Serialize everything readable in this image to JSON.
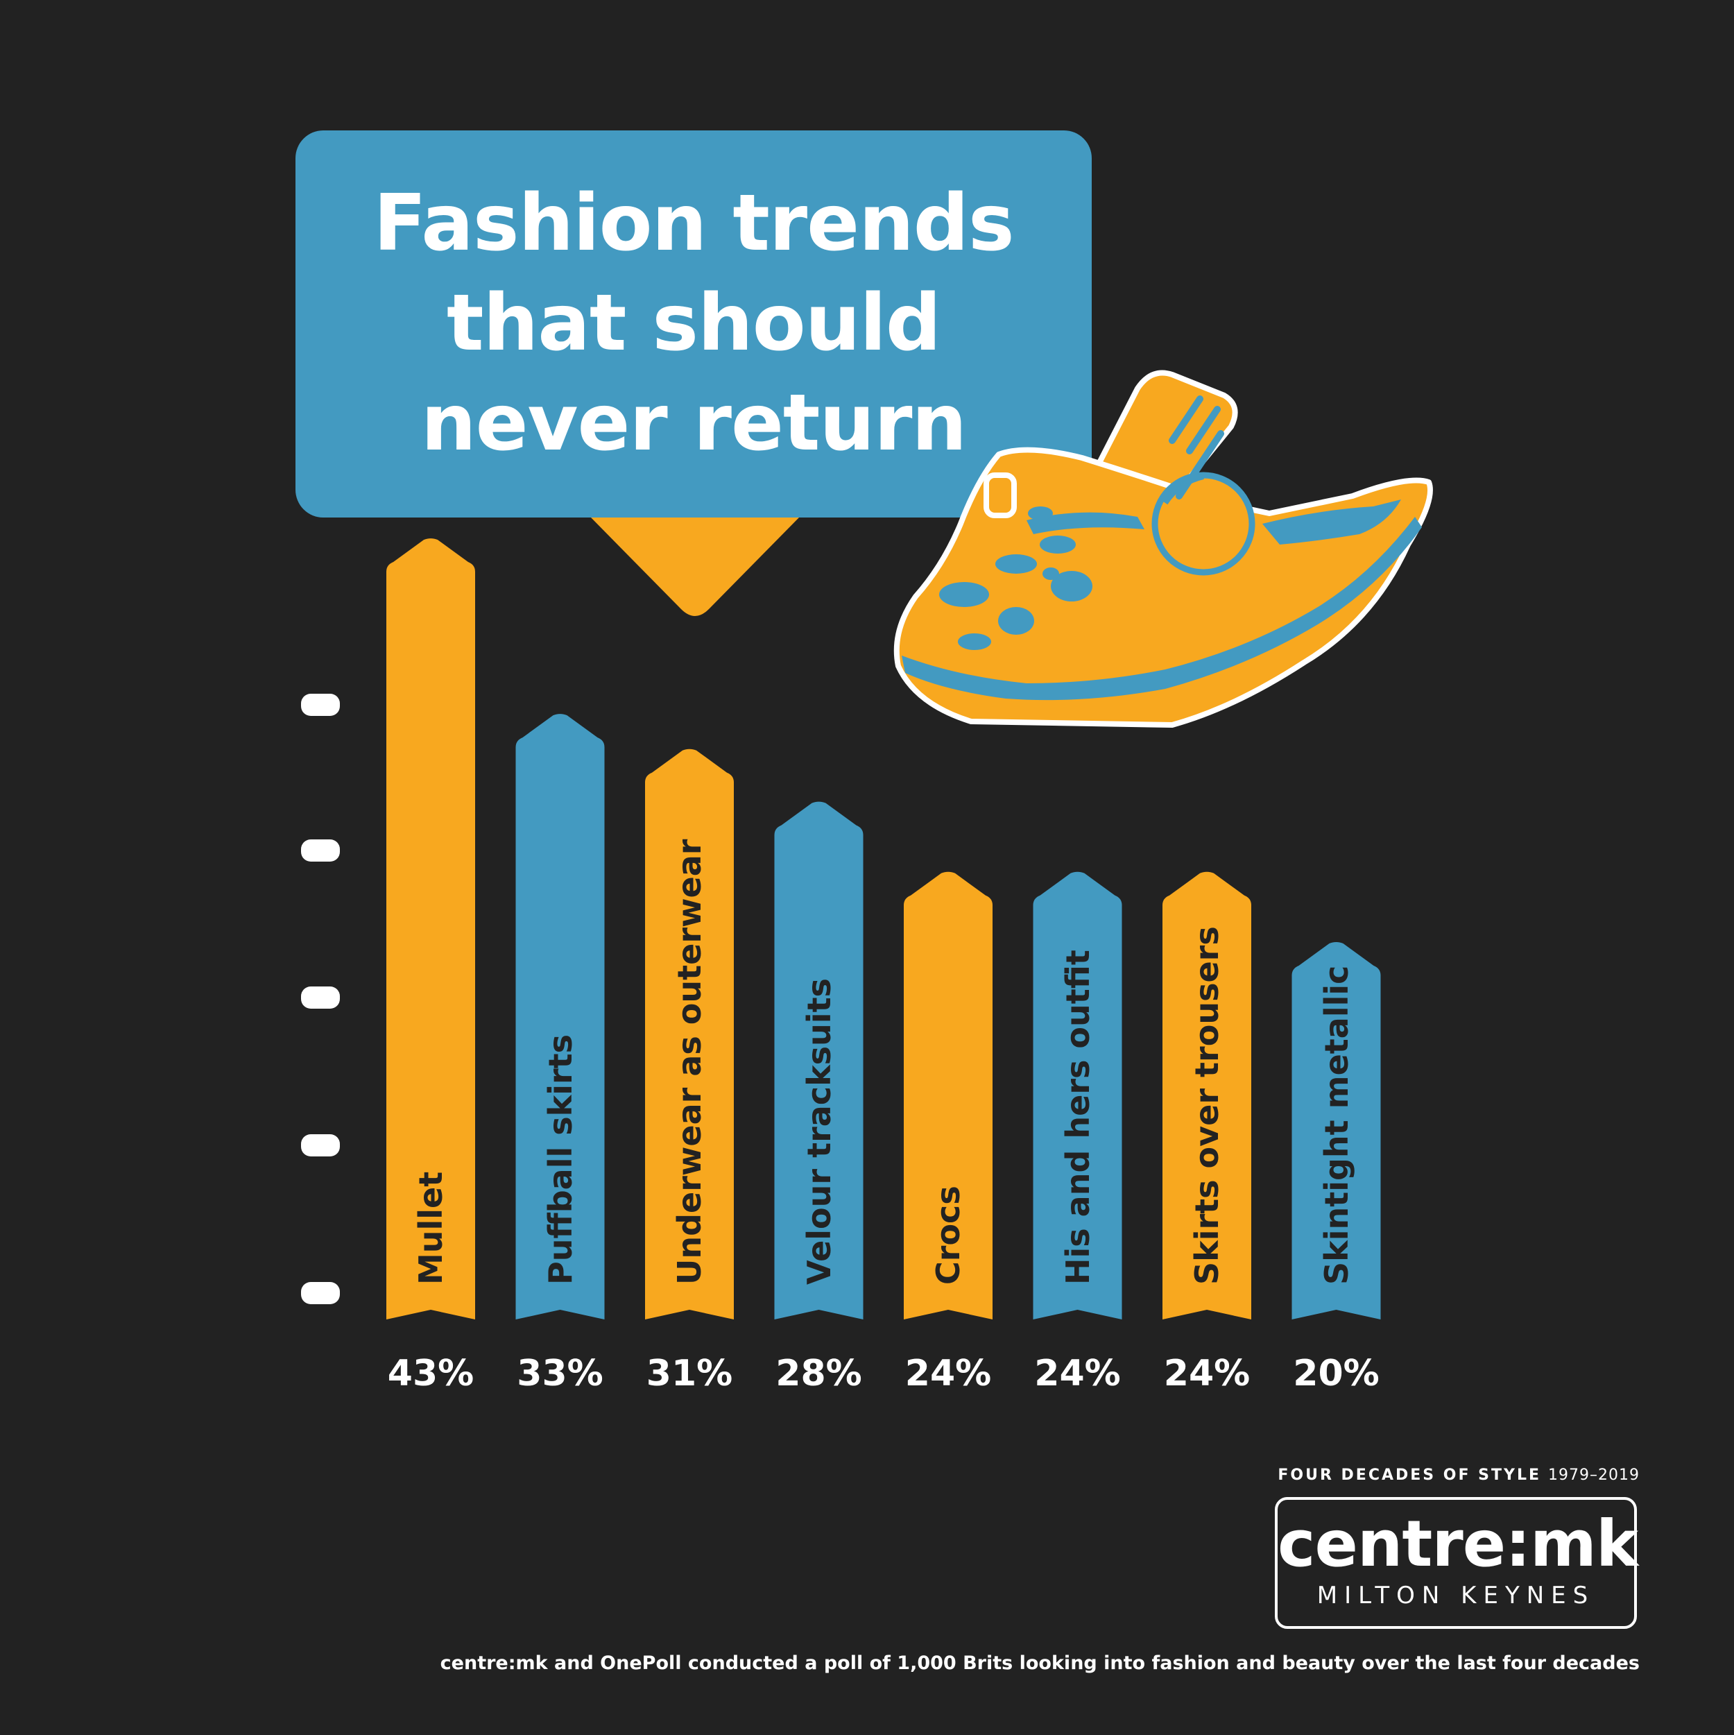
{
  "title_lines": [
    "Fashion trends",
    "that should",
    "never return"
  ],
  "colors": {
    "background": "#222222",
    "blue": "#439ac1",
    "orange": "#f8a81f",
    "label_text": "#222222",
    "white": "#ffffff"
  },
  "icons": {
    "shoe": "croc-shoe-icon"
  },
  "chart_data": {
    "type": "bar",
    "title": "Fashion trends that should never return",
    "categories": [
      "Mullet",
      "Puffball skirts",
      "Underwear as outerwear",
      "Velour tracksuits",
      "Crocs",
      "His and hers outfit",
      "Skirts over trousers",
      "Skintight metallic"
    ],
    "values": [
      43,
      33,
      31,
      28,
      24,
      24,
      24,
      20
    ],
    "value_labels": [
      "43%",
      "33%",
      "31%",
      "28%",
      "24%",
      "24%",
      "24%",
      "20%"
    ],
    "bar_colors": [
      "orange",
      "blue",
      "orange",
      "blue",
      "orange",
      "blue",
      "orange",
      "blue"
    ],
    "unit": "%",
    "xlabel": "",
    "ylabel": "",
    "grid": false,
    "legend": "none"
  },
  "branding": {
    "tagline_bold": "FOUR DECADES OF STYLE",
    "tagline_years": "1979–2019",
    "logo_main": "centre:mk",
    "logo_sub": "MILTON KEYNES"
  },
  "footnote": "centre:mk and OnePoll conducted a poll of 1,000 Brits looking into fashion and beauty over the last four decades"
}
